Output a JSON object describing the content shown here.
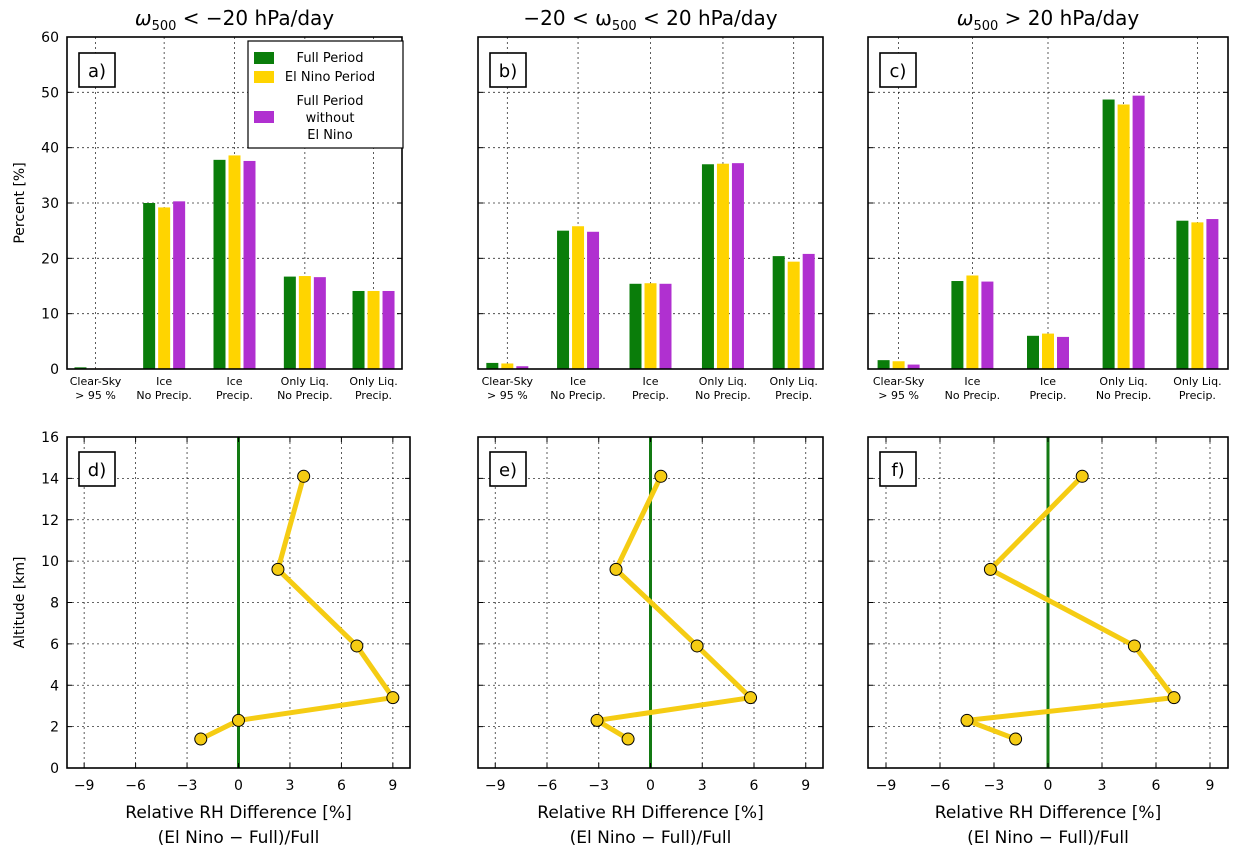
{
  "colors": {
    "full": "#0a7d0a",
    "elnino": "#ffd400",
    "without": "#b030d0",
    "line": "#f5cc13",
    "zero": "#137a13"
  },
  "chart_data": [
    {
      "id": "a",
      "label": "a)",
      "type": "bar",
      "title_pre": "ω",
      "title_sub": "500",
      "title_post": " < −20 hPa/day",
      "ylabel": "Percent [%]",
      "ylim": [
        0,
        60
      ],
      "yticks": [
        "0",
        "10",
        "20",
        "30",
        "40",
        "50",
        "60"
      ],
      "categories": [
        [
          "Clear-Sky",
          "> 95 %"
        ],
        [
          "Ice",
          "No Precip."
        ],
        [
          "Ice",
          "Precip."
        ],
        [
          "Only Liq.",
          "No Precip."
        ],
        [
          "Only Liq.",
          "Precip."
        ]
      ],
      "series": [
        {
          "name": "Full Period",
          "values": [
            0.3,
            30.0,
            37.8,
            16.7,
            14.1
          ]
        },
        {
          "name": "El Nino Period",
          "values": [
            0.1,
            29.2,
            38.6,
            16.8,
            14.1
          ]
        },
        {
          "name": "Full Period without El Nino",
          "values": [
            0.1,
            30.3,
            37.6,
            16.6,
            14.1
          ]
        }
      ],
      "legend": {
        "placement": "top-right",
        "entries": [
          [
            "Full Period"
          ],
          [
            "El Nino Period"
          ],
          [
            "Full Period",
            "without",
            "El Nino"
          ]
        ]
      },
      "grid": true
    },
    {
      "id": "b",
      "label": "b)",
      "type": "bar",
      "title_pre": "−20 < ω",
      "title_sub": "500",
      "title_post": " < 20 hPa/day",
      "ylabel": "",
      "ylim": [
        0,
        60
      ],
      "yticks": [],
      "categories": [
        [
          "Clear-Sky",
          "> 95 %"
        ],
        [
          "Ice",
          "No Precip."
        ],
        [
          "Ice",
          "Precip."
        ],
        [
          "Only Liq.",
          "No Precip."
        ],
        [
          "Only Liq.",
          "Precip."
        ]
      ],
      "series": [
        {
          "name": "Full Period",
          "values": [
            1.1,
            25.0,
            15.4,
            37.0,
            20.4
          ]
        },
        {
          "name": "El Nino Period",
          "values": [
            1.0,
            25.8,
            15.5,
            37.1,
            19.4
          ]
        },
        {
          "name": "Full Period without El Nino",
          "values": [
            0.5,
            24.8,
            15.4,
            37.2,
            20.8
          ]
        }
      ],
      "grid": true
    },
    {
      "id": "c",
      "label": "c)",
      "type": "bar",
      "title_pre": "ω",
      "title_sub": "500",
      "title_post": " > 20 hPa/day",
      "ylabel": "",
      "ylim": [
        0,
        60
      ],
      "yticks": [],
      "categories": [
        [
          "Clear-Sky",
          "> 95 %"
        ],
        [
          "Ice",
          "No Precip."
        ],
        [
          "Ice",
          "Precip."
        ],
        [
          "Only Liq.",
          "No Precip."
        ],
        [
          "Only Liq.",
          "Precip."
        ]
      ],
      "series": [
        {
          "name": "Full Period",
          "values": [
            1.6,
            15.9,
            6.0,
            48.7,
            26.8
          ]
        },
        {
          "name": "El Nino Period",
          "values": [
            1.4,
            16.9,
            6.4,
            47.8,
            26.5
          ]
        },
        {
          "name": "Full Period without El Nino",
          "values": [
            0.8,
            15.8,
            5.8,
            49.4,
            27.1
          ]
        }
      ],
      "grid": true
    },
    {
      "id": "d",
      "label": "d)",
      "type": "line",
      "ylabel": "Altitude [km]",
      "ylim": [
        0,
        16
      ],
      "yticks": [
        "0",
        "2",
        "4",
        "6",
        "8",
        "10",
        "12",
        "14",
        "16"
      ],
      "xlim": [
        -10,
        10
      ],
      "xticks": [
        "−9",
        "−6",
        "−3",
        "0",
        "3",
        "6",
        "9"
      ],
      "xlabel": [
        "Relative RH Difference [%]",
        "(El Nino − Full)/Full"
      ],
      "x": [
        -2.2,
        0.0,
        9.0,
        6.9,
        2.3,
        3.8
      ],
      "y": [
        1.4,
        2.3,
        3.4,
        5.9,
        9.6,
        14.1
      ],
      "grid": true
    },
    {
      "id": "e",
      "label": "e)",
      "type": "line",
      "ylabel": "",
      "ylim": [
        0,
        16
      ],
      "yticks": [],
      "xlim": [
        -10,
        10
      ],
      "xticks": [
        "−9",
        "−6",
        "−3",
        "0",
        "3",
        "6",
        "9"
      ],
      "xlabel": [
        "Relative RH Difference [%]",
        "(El Nino − Full)/Full"
      ],
      "x": [
        -1.3,
        -3.1,
        5.8,
        2.7,
        -2.0,
        0.6
      ],
      "y": [
        1.4,
        2.3,
        3.4,
        5.9,
        9.6,
        14.1
      ],
      "grid": true
    },
    {
      "id": "f",
      "label": "f)",
      "type": "line",
      "ylabel": "",
      "ylim": [
        0,
        16
      ],
      "yticks": [],
      "xlim": [
        -10,
        10
      ],
      "xticks": [
        "−9",
        "−6",
        "−3",
        "0",
        "3",
        "6",
        "9"
      ],
      "xlabel": [
        "Relative RH Difference [%]",
        "(El Nino − Full)/Full"
      ],
      "x": [
        -1.8,
        -4.5,
        7.0,
        4.8,
        -3.2,
        1.9
      ],
      "y": [
        1.4,
        2.3,
        3.4,
        5.9,
        9.6,
        14.1
      ],
      "grid": true
    }
  ]
}
